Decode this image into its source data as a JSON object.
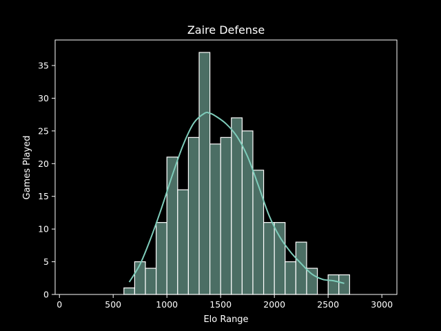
{
  "chart_data": {
    "type": "bar",
    "subtype": "histogram",
    "title": "Zaire Defense",
    "xlabel": "Elo Range",
    "ylabel": "Games Played",
    "xlim": [
      -40,
      3140
    ],
    "ylim": [
      0,
      38.9
    ],
    "xticks": [
      0,
      500,
      1000,
      1500,
      2000,
      2500,
      3000
    ],
    "yticks": [
      0,
      5,
      10,
      15,
      20,
      25,
      30,
      35
    ],
    "bins": {
      "edges": [
        100,
        200,
        300,
        400,
        500,
        600,
        700,
        800,
        900,
        1000,
        1100,
        1200,
        1300,
        1400,
        1500,
        1600,
        1700,
        1800,
        1900,
        2000,
        2100,
        2200,
        2300,
        2400,
        2500,
        2600,
        2700
      ],
      "counts": [
        0,
        0,
        0,
        0,
        0,
        1,
        5,
        4,
        11,
        21,
        16,
        24,
        37,
        23,
        24,
        27,
        25,
        19,
        11,
        11,
        5,
        8,
        4,
        0,
        3,
        3
      ]
    },
    "kde": {
      "x": [
        650,
        750,
        850,
        950,
        1050,
        1150,
        1250,
        1350,
        1400,
        1450,
        1550,
        1650,
        1750,
        1850,
        1950,
        2050,
        2150,
        2250,
        2350,
        2450,
        2550,
        2650
      ],
      "y": [
        1.9,
        4.6,
        8.6,
        13.2,
        18.2,
        22.8,
        26.2,
        27.7,
        27.7,
        27.3,
        26.1,
        24.2,
        21.1,
        16.7,
        12.1,
        8.8,
        6.5,
        4.7,
        3.1,
        2.3,
        2.1,
        1.7
      ]
    },
    "grid": false,
    "colors": {
      "background": "#000000",
      "bar_fill": "#4b6e64",
      "bar_edge": "#ffffff",
      "kde_line": "#7fcdbb",
      "axes": "#ffffff",
      "text": "#ffffff"
    }
  }
}
